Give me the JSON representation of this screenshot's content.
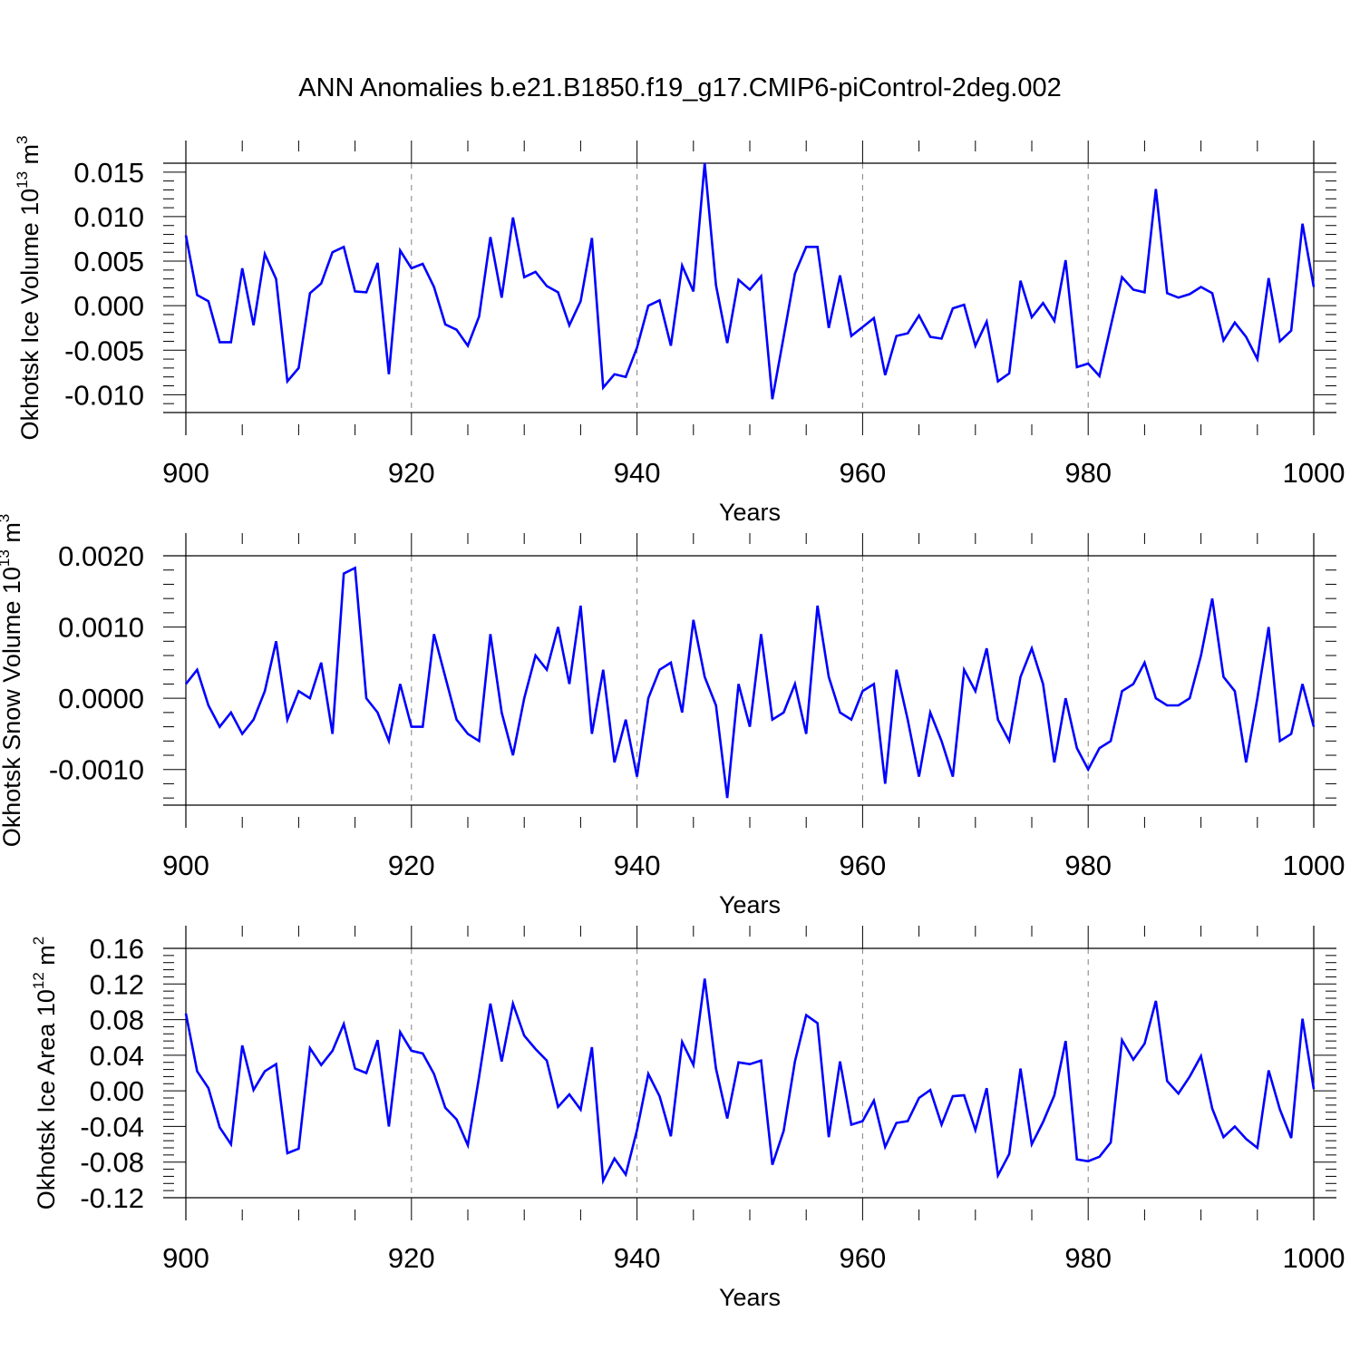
{
  "title": "ANN Anomalies b.e21.B1850.f19_g17.CMIP6-piControl-2deg.002",
  "colors": {
    "series": "#0000ff",
    "axis": "#000000",
    "grid": "#808080"
  },
  "chart_data": [
    {
      "type": "line",
      "ylabel": {
        "prefix": "Okhotsk Ice Volume 10",
        "exponent": "13",
        "mid": " m",
        "unit_exponent": "3"
      },
      "xlabel": "Years",
      "xlim": [
        900,
        1000
      ],
      "ylim": [
        -0.012,
        0.016
      ],
      "x_ticks": [
        900,
        920,
        940,
        960,
        980,
        1000
      ],
      "x_tick_labels": [
        "900",
        "920",
        "940",
        "960",
        "980",
        "1000"
      ],
      "y_ticks": [
        -0.01,
        -0.005,
        0.0,
        0.005,
        0.01,
        0.015
      ],
      "y_tick_labels": [
        "-0.010",
        "-0.005",
        "0.000",
        "0.005",
        "0.010",
        "0.015"
      ],
      "grid": "vertical dashed at major x ticks",
      "x_start": 900,
      "values": [
        0.0079,
        0.0012,
        0.0005,
        -0.0041,
        -0.0041,
        0.0042,
        -0.0022,
        0.0058,
        0.003,
        -0.0085,
        -0.007,
        0.0014,
        0.0025,
        0.006,
        0.0066,
        0.0016,
        0.0015,
        0.0048,
        -0.0077,
        0.0062,
        0.0042,
        0.0047,
        0.0021,
        -0.0021,
        -0.0027,
        -0.0045,
        -0.0012,
        0.0077,
        0.0009,
        0.0099,
        0.0032,
        0.0038,
        0.0022,
        0.0015,
        -0.0022,
        0.0005,
        0.0076,
        -0.0092,
        -0.0077,
        -0.008,
        -0.0047,
        0.0,
        0.0006,
        -0.0045,
        0.0045,
        0.0016,
        0.016,
        0.0023,
        -0.0042,
        0.0029,
        0.0018,
        0.0033,
        -0.0105,
        -0.0035,
        0.0036,
        0.0066,
        0.0066,
        -0.0025,
        0.0034,
        -0.0034,
        -0.0024,
        -0.0014,
        -0.0078,
        -0.0034,
        -0.0031,
        -0.0011,
        -0.0035,
        -0.0037,
        -0.0003,
        0.0001,
        -0.0045,
        -0.0018,
        -0.0085,
        -0.0076,
        0.0028,
        -0.0013,
        0.0003,
        -0.0017,
        0.0051,
        -0.0069,
        -0.0065,
        -0.0079,
        -0.0023,
        0.0032,
        0.0018,
        0.0015,
        0.0131,
        0.0014,
        0.0009,
        0.0013,
        0.0021,
        0.0014,
        -0.0039,
        -0.0019,
        -0.0035,
        -0.006,
        0.0031,
        -0.004,
        -0.0028,
        0.0092,
        0.0021
      ]
    },
    {
      "type": "line",
      "ylabel": {
        "prefix": "Okhotsk Snow Volume 10",
        "exponent": "13",
        "mid": " m",
        "unit_exponent": "3"
      },
      "xlabel": "Years",
      "xlim": [
        900,
        1000
      ],
      "ylim": [
        -0.0015,
        0.002
      ],
      "x_ticks": [
        900,
        920,
        940,
        960,
        980,
        1000
      ],
      "x_tick_labels": [
        "900",
        "920",
        "940",
        "960",
        "980",
        "1000"
      ],
      "y_ticks": [
        -0.001,
        0.0,
        0.001,
        0.002
      ],
      "y_tick_labels": [
        "-0.0010",
        "0.0000",
        "0.0010",
        "0.0020"
      ],
      "grid": "vertical dashed at major x ticks",
      "x_start": 900,
      "values": [
        0.0002,
        0.0004,
        -0.0001,
        -0.0004,
        -0.0002,
        -0.0005,
        -0.0003,
        0.0001,
        0.0008,
        -0.0003,
        0.0001,
        0.0,
        0.0005,
        -0.0005,
        0.00175,
        0.00183,
        0.0,
        -0.0002,
        -0.0006,
        0.0002,
        -0.0004,
        -0.0004,
        0.0009,
        0.0003,
        -0.0003,
        -0.0005,
        -0.0006,
        0.0009,
        -0.0002,
        -0.0008,
        0.0,
        0.0006,
        0.0004,
        0.001,
        0.0002,
        0.0013,
        -0.0005,
        0.0004,
        -0.0009,
        -0.0003,
        -0.0011,
        0.0,
        0.0004,
        0.0005,
        -0.0002,
        0.0011,
        0.0003,
        -0.0001,
        -0.0014,
        0.0002,
        -0.0004,
        0.0009,
        -0.0003,
        -0.0002,
        0.0002,
        -0.0005,
        0.0013,
        0.0003,
        -0.0002,
        -0.0003,
        0.0001,
        0.0002,
        -0.0012,
        0.0004,
        -0.0003,
        -0.0011,
        -0.0002,
        -0.0006,
        -0.0011,
        0.0004,
        0.0001,
        0.0007,
        -0.0003,
        -0.0006,
        0.0003,
        0.0007,
        0.0002,
        -0.0009,
        0.0,
        -0.0007,
        -0.001,
        -0.0007,
        -0.0006,
        0.0001,
        0.0002,
        0.0005,
        0.0,
        -0.0001,
        -0.0001,
        0.0,
        0.0006,
        0.0014,
        0.0003,
        0.0001,
        -0.0009,
        0.0,
        0.001,
        -0.0006,
        -0.0005,
        0.0002,
        -0.0004
      ]
    },
    {
      "type": "line",
      "ylabel": {
        "prefix": "Okhotsk Ice Area 10",
        "exponent": "12",
        "mid": " m",
        "unit_exponent": "2"
      },
      "xlabel": "Years",
      "xlim": [
        900,
        1000
      ],
      "ylim": [
        -0.12,
        0.16
      ],
      "x_ticks": [
        900,
        920,
        940,
        960,
        980,
        1000
      ],
      "x_tick_labels": [
        "900",
        "920",
        "940",
        "960",
        "980",
        "1000"
      ],
      "y_ticks": [
        -0.12,
        -0.08,
        -0.04,
        0.0,
        0.04,
        0.08,
        0.12,
        0.16
      ],
      "y_tick_labels": [
        "-0.12",
        "-0.08",
        "-0.04",
        "0.00",
        "0.04",
        "0.08",
        "0.12",
        "0.16"
      ],
      "grid": "vertical dashed at major x ticks",
      "x_start": 900,
      "values": [
        0.087,
        0.022,
        0.003,
        -0.041,
        -0.06,
        0.051,
        0.001,
        0.022,
        0.03,
        -0.07,
        -0.065,
        0.048,
        0.029,
        0.045,
        0.075,
        0.025,
        0.02,
        0.057,
        -0.04,
        0.066,
        0.045,
        0.042,
        0.019,
        -0.019,
        -0.032,
        -0.061,
        0.016,
        0.098,
        0.033,
        0.098,
        0.062,
        0.047,
        0.034,
        -0.018,
        -0.004,
        -0.021,
        0.049,
        -0.101,
        -0.076,
        -0.094,
        -0.044,
        0.019,
        -0.006,
        -0.051,
        0.055,
        0.029,
        0.126,
        0.025,
        -0.031,
        0.032,
        0.03,
        0.034,
        -0.083,
        -0.045,
        0.033,
        0.085,
        0.076,
        -0.052,
        0.033,
        -0.038,
        -0.034,
        -0.011,
        -0.063,
        -0.036,
        -0.034,
        -0.008,
        0.001,
        -0.038,
        -0.006,
        -0.005,
        -0.044,
        0.003,
        -0.095,
        -0.071,
        0.025,
        -0.06,
        -0.035,
        -0.005,
        0.056,
        -0.077,
        -0.079,
        -0.074,
        -0.058,
        0.057,
        0.035,
        0.053,
        0.101,
        0.011,
        -0.003,
        0.016,
        0.039,
        -0.02,
        -0.052,
        -0.04,
        -0.054,
        -0.064,
        0.023,
        -0.021,
        -0.053,
        0.081,
        0.002
      ]
    }
  ]
}
